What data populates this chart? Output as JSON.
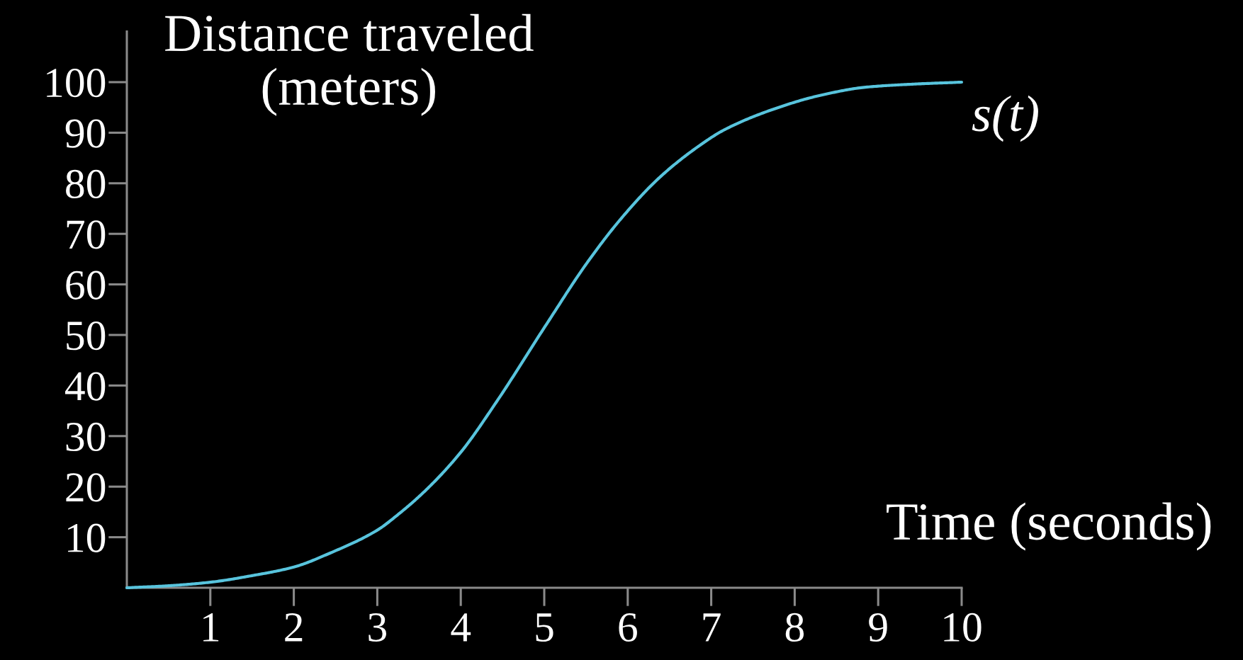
{
  "chart_data": {
    "type": "line",
    "xlabel": "Time (seconds)",
    "ylabel": "Distance traveled\n(meters)",
    "xlim": [
      0,
      10
    ],
    "ylim": [
      0,
      110
    ],
    "xticks": [
      1,
      2,
      3,
      4,
      5,
      6,
      7,
      8,
      9,
      10
    ],
    "yticks": [
      10,
      20,
      30,
      40,
      50,
      60,
      70,
      80,
      90,
      100
    ],
    "series": [
      {
        "name": "s(t)",
        "color": "#58c4dd",
        "x": [
          0,
          0.5,
          1,
          1.5,
          2,
          2.44,
          3,
          3.25,
          3.575,
          4,
          4.425,
          5.03,
          5.51,
          5.93,
          6.385,
          6.838,
          7.16,
          7.72,
          8.285,
          8.85,
          9.41,
          10
        ],
        "values": [
          0,
          0.4,
          1.1,
          2.4,
          4.1,
          6.9,
          11.4,
          14.5,
          19.2,
          26.8,
          36.7,
          52.2,
          64.2,
          73.2,
          81.2,
          87.2,
          90.6,
          94.5,
          97.3,
          99.0,
          99.6,
          100
        ]
      }
    ]
  }
}
